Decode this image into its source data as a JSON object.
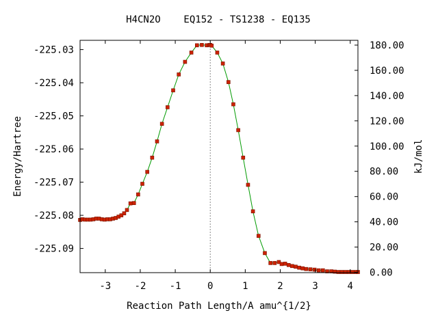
{
  "chart_data": {
    "type": "scatter",
    "title": "H4CN2O    EQ152 - TS1238 - EQ135",
    "xlabel": "Reaction Path Length/A amu^{1/2}",
    "ylabel_left": "Energy/Hartree",
    "ylabel_right": "kJ/mol",
    "xlim": [
      -3.72,
      4.22
    ],
    "ylim": [
      -225.0973,
      -225.0272
    ],
    "x_ticks": [
      -3,
      -2,
      -1,
      0,
      1,
      2,
      3,
      4
    ],
    "x_tick_labels": [
      "-3",
      "-2",
      "-1",
      "0",
      "1",
      "2",
      "3",
      "4"
    ],
    "y_ticks_left": [
      -225.03,
      -225.04,
      -225.05,
      -225.06,
      -225.07,
      -225.08,
      -225.09
    ],
    "y_tick_labels_left": [
      "-225.03",
      "-225.04",
      "-225.05",
      "-225.06",
      "-225.07",
      "-225.08",
      "-225.09"
    ],
    "y_ticks_right_kj": [
      0,
      20,
      40,
      60,
      80,
      100,
      120,
      140,
      160,
      180
    ],
    "y_tick_labels_right": [
      "0.00",
      "20.00",
      "40.00",
      "60.00",
      "80.00",
      "100.00",
      "120.00",
      "140.00",
      "160.00",
      "180.00"
    ],
    "right_axis_zero_energy": -225.0972,
    "ts_x": 0.0,
    "grid": false,
    "series": [
      {
        "line_color": "#009a00",
        "marker_color": "#cc2200",
        "x": [
          -3.72,
          -3.65,
          -3.58,
          -3.5,
          -3.42,
          -3.34,
          -3.26,
          -3.18,
          -3.1,
          -3.02,
          -2.94,
          -2.86,
          -2.78,
          -2.7,
          -2.62,
          -2.54,
          -2.46,
          -2.38,
          -2.28,
          -2.18,
          -2.06,
          -1.94,
          -1.8,
          -1.66,
          -1.52,
          -1.38,
          -1.22,
          -1.06,
          -0.9,
          -0.72,
          -0.54,
          -0.38,
          -0.24,
          -0.1,
          -0.02,
          0.0,
          0.04,
          0.2,
          0.36,
          0.52,
          0.66,
          0.8,
          0.94,
          1.08,
          1.22,
          1.38,
          1.56,
          1.72,
          1.84,
          1.96,
          2.04,
          2.14,
          2.24,
          2.34,
          2.44,
          2.54,
          2.64,
          2.74,
          2.86,
          2.98,
          3.1,
          3.22,
          3.34,
          3.46,
          3.56,
          3.66,
          3.76,
          3.86,
          3.96,
          4.06,
          4.16,
          4.22
        ],
        "y": [
          -225.0814,
          -225.0812,
          -225.0813,
          -225.0813,
          -225.0813,
          -225.0812,
          -225.081,
          -225.081,
          -225.0812,
          -225.0813,
          -225.0812,
          -225.0812,
          -225.081,
          -225.0808,
          -225.0804,
          -225.08,
          -225.0794,
          -225.0784,
          -225.0764,
          -225.0763,
          -225.0737,
          -225.0705,
          -225.0669,
          -225.0626,
          -225.0577,
          -225.0524,
          -225.0474,
          -225.0423,
          -225.0375,
          -225.0337,
          -225.0309,
          -225.0287,
          -225.0286,
          -225.0287,
          -225.0286,
          -225.0286,
          -225.0288,
          -225.0309,
          -225.0342,
          -225.0398,
          -225.0465,
          -225.0543,
          -225.0626,
          -225.0708,
          -225.0788,
          -225.0862,
          -225.0914,
          -225.0944,
          -225.0944,
          -225.0941,
          -225.0947,
          -225.0946,
          -225.095,
          -225.0953,
          -225.0955,
          -225.0958,
          -225.096,
          -225.0962,
          -225.0963,
          -225.0964,
          -225.0966,
          -225.0966,
          -225.0969,
          -225.0969,
          -225.097,
          -225.0971,
          -225.0971,
          -225.0971,
          -225.0971,
          -225.0971,
          -225.0971,
          -225.0971
        ]
      }
    ]
  }
}
